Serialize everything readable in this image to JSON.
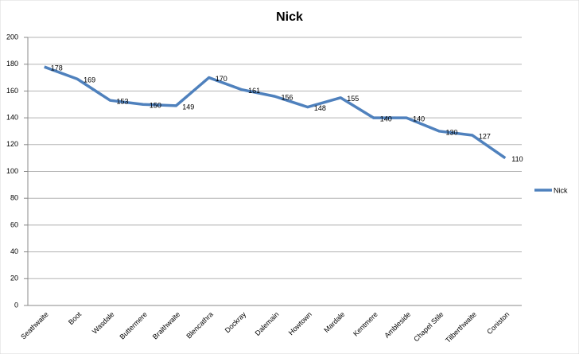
{
  "chart_data": {
    "type": "line",
    "title": "Nick",
    "categories": [
      "Seathwaite",
      "Boot",
      "Wasdale",
      "Buttermere",
      "Braithwaite",
      "Blencathra",
      "Dockray",
      "Dalemain",
      "Howtown",
      "Mardale",
      "Kentmere",
      "Ambleside",
      "Chapel Stile",
      "Tilberthwaite",
      "Coniston"
    ],
    "series": [
      {
        "name": "Nick",
        "color": "#4f81bd",
        "values": [
          178,
          169,
          153,
          150,
          149,
          170,
          161,
          156,
          148,
          155,
          140,
          140,
          130,
          127,
          110
        ]
      }
    ],
    "ylim": [
      0,
      200
    ],
    "yticks": [
      0,
      20,
      40,
      60,
      80,
      100,
      120,
      140,
      160,
      180,
      200
    ],
    "grid": true,
    "legend": "right"
  }
}
